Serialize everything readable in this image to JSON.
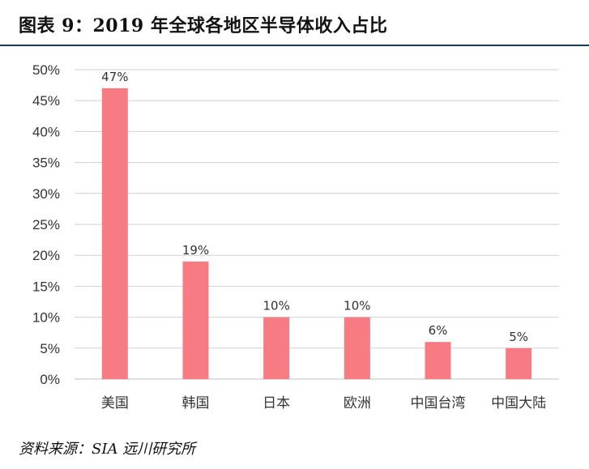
{
  "header": {
    "title": "图表 9：2019 年全球各地区半导体收入占比"
  },
  "footer": {
    "source": "资料来源：SIA   远川研究所"
  },
  "colors": {
    "bar": "#f77b82",
    "grid": "#d0d0d0",
    "axis": "#bdbdbd",
    "title_rule": "#1f3a5f"
  },
  "chart_data": {
    "type": "bar",
    "categories": [
      "美国",
      "韩国",
      "日本",
      "欧洲",
      "中国台湾",
      "中国大陆"
    ],
    "values": [
      47,
      19,
      10,
      10,
      6,
      5
    ],
    "value_labels": [
      "47%",
      "19%",
      "10%",
      "10%",
      "6%",
      "5%"
    ],
    "y_ticks": [
      0,
      5,
      10,
      15,
      20,
      25,
      30,
      35,
      40,
      45,
      50
    ],
    "y_tick_labels": [
      "0%",
      "5%",
      "10%",
      "15%",
      "20%",
      "25%",
      "30%",
      "35%",
      "40%",
      "45%",
      "50%"
    ],
    "ylim": [
      0,
      50
    ],
    "title": "",
    "xlabel": "",
    "ylabel": "",
    "grid": true,
    "legend": "none"
  }
}
